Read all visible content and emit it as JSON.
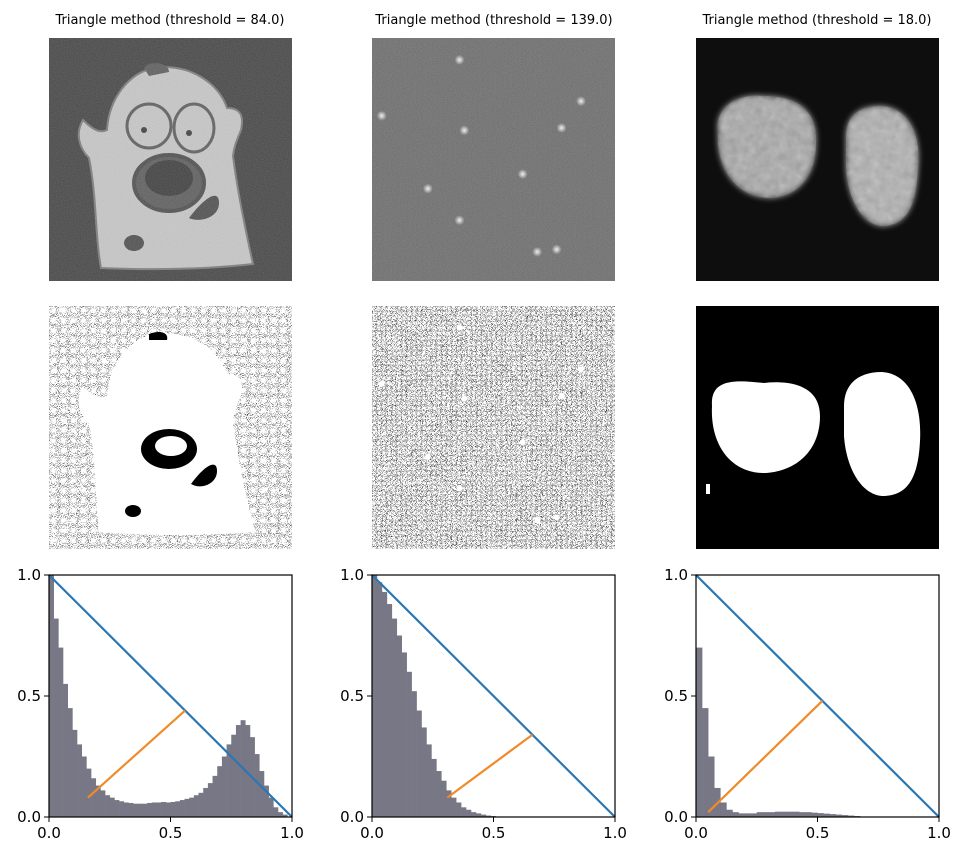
{
  "chart_data": [
    {
      "type": "image_panels_with_histogram",
      "title": "Triangle method (threshold = 84.0)",
      "threshold": 84.0,
      "image": "camera",
      "histogram": [
        1.0,
        0.82,
        0.7,
        0.55,
        0.45,
        0.36,
        0.3,
        0.25,
        0.2,
        0.16,
        0.13,
        0.11,
        0.09,
        0.08,
        0.07,
        0.065,
        0.06,
        0.058,
        0.055,
        0.055,
        0.055,
        0.058,
        0.06,
        0.06,
        0.062,
        0.06,
        0.062,
        0.065,
        0.07,
        0.075,
        0.08,
        0.09,
        0.1,
        0.12,
        0.14,
        0.17,
        0.21,
        0.25,
        0.3,
        0.34,
        0.38,
        0.4,
        0.38,
        0.33,
        0.26,
        0.19,
        0.13,
        0.08,
        0.04,
        0.02,
        0.01,
        0.0
      ],
      "histogram_range": [
        0,
        1
      ],
      "triangle_line": [
        [
          0.0,
          1.0
        ],
        [
          1.0,
          0.0
        ]
      ],
      "threshold_line": [
        [
          0.16,
          0.08
        ],
        [
          0.56,
          0.44
        ]
      ],
      "xlim": [
        0,
        1
      ],
      "ylim": [
        0,
        1
      ],
      "x_ticks": [
        "0.0",
        "0.5",
        "1.0"
      ],
      "y_ticks": [
        "0.0",
        "0.5",
        "1.0"
      ]
    },
    {
      "type": "image_panels_with_histogram",
      "title": "Triangle method (threshold = 139.0)",
      "threshold": 139.0,
      "image": "spots",
      "spots": [
        [
          0.36,
          0.09
        ],
        [
          0.04,
          0.32
        ],
        [
          0.38,
          0.38
        ],
        [
          0.86,
          0.26
        ],
        [
          0.78,
          0.37
        ],
        [
          0.62,
          0.56
        ],
        [
          0.23,
          0.62
        ],
        [
          0.36,
          0.75
        ],
        [
          0.68,
          0.88
        ],
        [
          0.76,
          0.87
        ]
      ],
      "histogram": [
        1.0,
        0.97,
        0.93,
        0.88,
        0.82,
        0.75,
        0.68,
        0.6,
        0.52,
        0.44,
        0.37,
        0.3,
        0.24,
        0.19,
        0.15,
        0.11,
        0.08,
        0.06,
        0.04,
        0.03,
        0.02,
        0.015,
        0.01,
        0.006,
        0.004,
        0.002,
        0.0
      ],
      "histogram_range": [
        0,
        0.55
      ],
      "triangle_line": [
        [
          0.0,
          1.0
        ],
        [
          1.0,
          0.0
        ]
      ],
      "threshold_line": [
        [
          0.31,
          0.08
        ],
        [
          0.66,
          0.34
        ]
      ],
      "xlim": [
        0,
        1
      ],
      "ylim": [
        0,
        1
      ],
      "x_ticks": [
        "0.0",
        "0.5",
        "1.0"
      ],
      "y_ticks": [
        "0.0",
        "0.5",
        "1.0"
      ]
    },
    {
      "type": "image_panels_with_histogram",
      "title": "Triangle method (threshold = 18.0)",
      "threshold": 18.0,
      "image": "nuclei",
      "histogram": [
        0.7,
        0.45,
        0.25,
        0.12,
        0.06,
        0.03,
        0.02,
        0.015,
        0.015,
        0.015,
        0.02,
        0.02,
        0.02,
        0.022,
        0.022,
        0.022,
        0.022,
        0.02,
        0.02,
        0.018,
        0.016,
        0.014,
        0.012,
        0.01,
        0.008,
        0.006,
        0.004,
        0.002,
        0.001,
        0.0
      ],
      "histogram_range": [
        0,
        0.75
      ],
      "triangle_line": [
        [
          0.0,
          1.0
        ],
        [
          1.0,
          0.0
        ]
      ],
      "threshold_line": [
        [
          0.05,
          0.02
        ],
        [
          0.52,
          0.48
        ]
      ],
      "xlim": [
        0,
        1
      ],
      "ylim": [
        0,
        1
      ],
      "x_ticks": [
        "0.0",
        "0.5",
        "1.0"
      ],
      "y_ticks": [
        "0.0",
        "0.5",
        "1.0"
      ]
    }
  ],
  "colors": {
    "hist_fill": "#777785",
    "triangle_line": "#2a77b4",
    "threshold_line": "#f08a2a",
    "axes": "#000000"
  }
}
